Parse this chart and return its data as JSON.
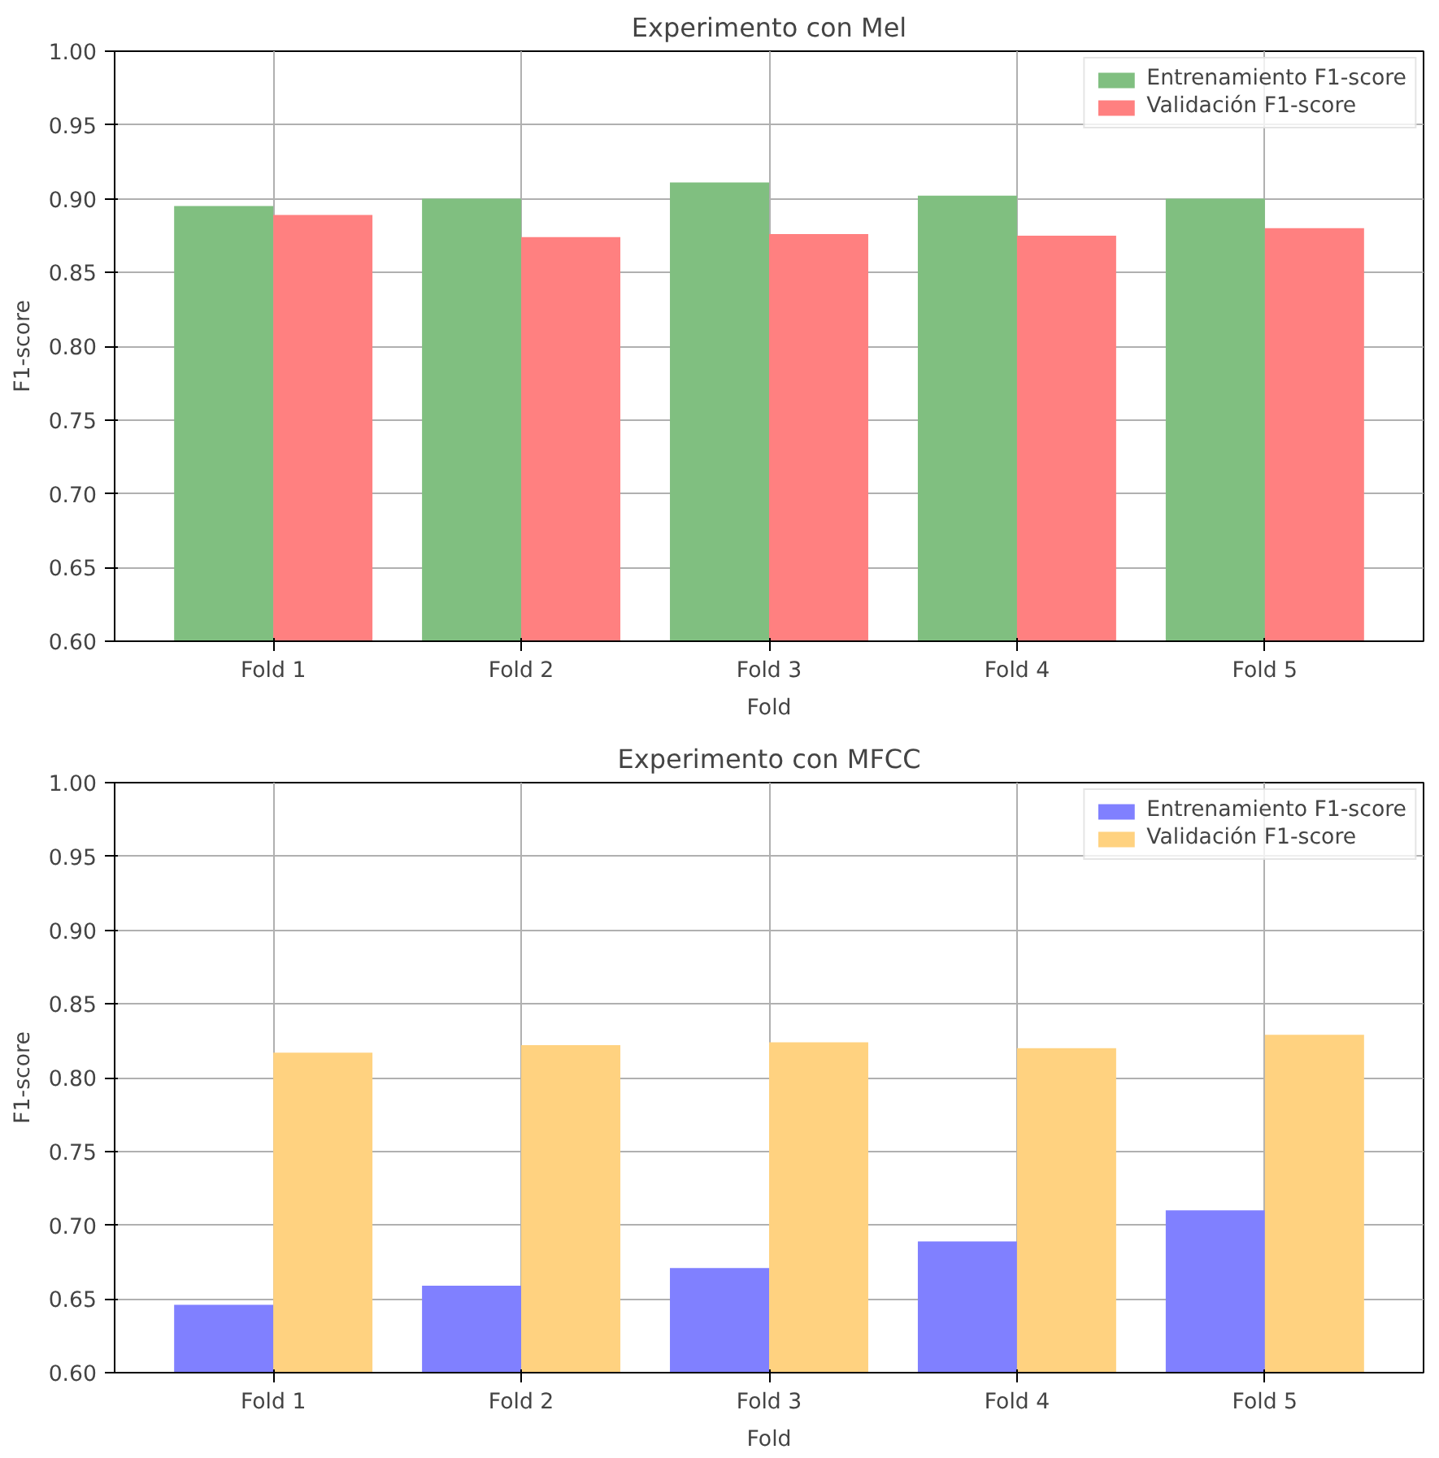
{
  "chart_data": [
    {
      "type": "bar",
      "title": "Experimento con Mel",
      "xlabel": "Fold",
      "ylabel": "F1-score",
      "categories": [
        "Fold 1",
        "Fold 2",
        "Fold 3",
        "Fold 4",
        "Fold 5"
      ],
      "series": [
        {
          "name": "Entrenamiento F1-score",
          "color": "#80bf80",
          "values": [
            0.895,
            0.9,
            0.911,
            0.902,
            0.9
          ]
        },
        {
          "name": "Validación F1-score",
          "color": "#ff8080",
          "values": [
            0.889,
            0.874,
            0.876,
            0.875,
            0.88
          ]
        }
      ],
      "ylim": [
        0.6,
        1.0
      ],
      "yticks": [
        {
          "value": 0.6,
          "label": "0.60"
        },
        {
          "value": 0.65,
          "label": "0.65"
        },
        {
          "value": 0.7,
          "label": "0.70"
        },
        {
          "value": 0.75,
          "label": "0.75"
        },
        {
          "value": 0.8,
          "label": "0.80"
        },
        {
          "value": 0.85,
          "label": "0.85"
        },
        {
          "value": 0.9,
          "label": "0.90"
        },
        {
          "value": 0.95,
          "label": "0.95"
        },
        {
          "value": 1.0,
          "label": "1.00"
        }
      ],
      "grid": true,
      "legend": "top right"
    },
    {
      "type": "bar",
      "title": "Experimento con MFCC",
      "xlabel": "Fold",
      "ylabel": "F1-score",
      "categories": [
        "Fold 1",
        "Fold 2",
        "Fold 3",
        "Fold 4",
        "Fold 5"
      ],
      "series": [
        {
          "name": "Entrenamiento F1-score",
          "color": "#8080ff",
          "values": [
            0.646,
            0.659,
            0.671,
            0.689,
            0.71
          ]
        },
        {
          "name": "Validación F1-score",
          "color": "#ffd280",
          "values": [
            0.817,
            0.822,
            0.824,
            0.82,
            0.829
          ]
        }
      ],
      "ylim": [
        0.6,
        1.0
      ],
      "yticks": [
        {
          "value": 0.6,
          "label": "0.60"
        },
        {
          "value": 0.65,
          "label": "0.65"
        },
        {
          "value": 0.7,
          "label": "0.70"
        },
        {
          "value": 0.75,
          "label": "0.75"
        },
        {
          "value": 0.8,
          "label": "0.80"
        },
        {
          "value": 0.85,
          "label": "0.85"
        },
        {
          "value": 0.9,
          "label": "0.90"
        },
        {
          "value": 0.95,
          "label": "0.95"
        },
        {
          "value": 1.0,
          "label": "1.00"
        }
      ],
      "grid": true,
      "legend": "top right"
    }
  ]
}
